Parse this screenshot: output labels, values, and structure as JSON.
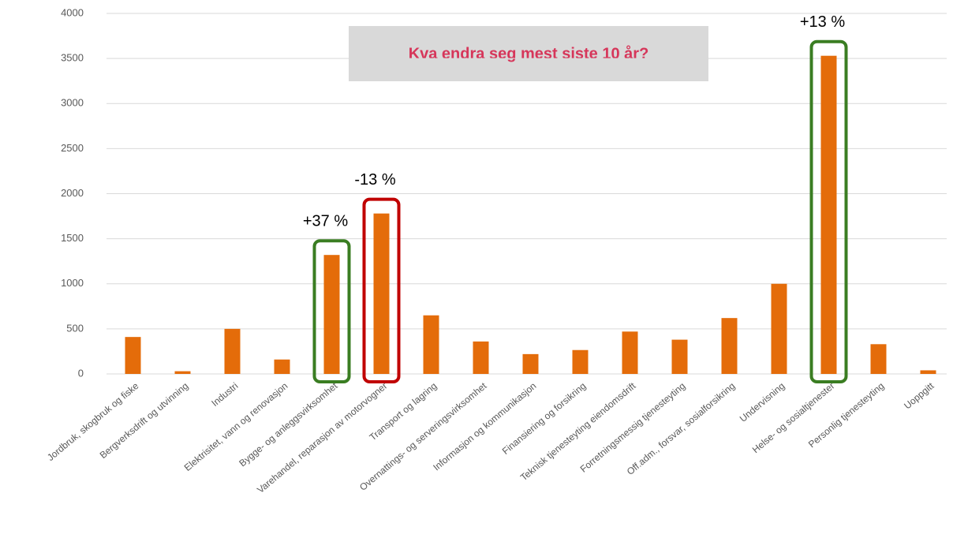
{
  "chart_data": {
    "type": "bar",
    "title": "Kva endra seg mest siste 10 år?",
    "categories": [
      "Jordbruk, skogbruk og fiske",
      "Bergverksdrift og utvinning",
      "Industri",
      "Elektrisitet, vann og renovasjon",
      "Bygge- og anleggsvirksomhet",
      "Varehandel, reparasjon av motorvogner",
      "Transport og lagring",
      "Overnattings- og serveringsvirksomhet",
      "Informasjon og kommunikasjon",
      "Finansiering og forsikring",
      "Teknisk tjenesteyting eiendomsdrift",
      "Forretningsmessig tjenesteyting",
      "Off.adm., forsvar, sosialforsikring",
      "Undervisning",
      "Helse- og sosialtjenester",
      "Personlig tjenesteyting",
      "Uoppgitt"
    ],
    "values": [
      410,
      30,
      500,
      160,
      1320,
      1780,
      650,
      360,
      220,
      265,
      470,
      380,
      620,
      1000,
      3530,
      330,
      40
    ],
    "color": "#e46c0a",
    "ylim": [
      0,
      4000
    ],
    "yticks": [
      0,
      500,
      1000,
      1500,
      2000,
      2500,
      3000,
      3500,
      4000
    ],
    "grid": true,
    "annotations": [
      {
        "label": "+37 %",
        "category": 4,
        "color": "#3a7d22"
      },
      {
        "label": "-13 %",
        "category": 5,
        "color": "#c00000"
      },
      {
        "label": "+13 %",
        "category": 14,
        "color": "#3a7d22"
      }
    ]
  }
}
